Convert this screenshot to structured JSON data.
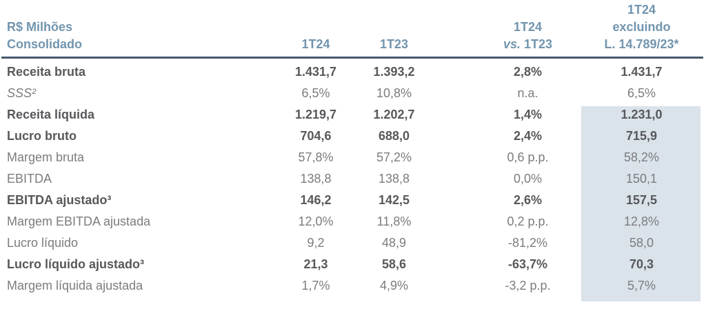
{
  "header": {
    "title_line1": "R$ Milhões",
    "title_line2": "Consolidado",
    "col_1t24": "1T24",
    "col_1t23": "1T23",
    "col_vs_line1": "1T24",
    "col_vs_line2_italic": "vs.",
    "col_vs_line2_text": "1T23",
    "col_excl_line1": "1T24",
    "col_excl_line2": "excluindo",
    "col_excl_line3": "L. 14.789/23*"
  },
  "rows": [
    {
      "label": "Receita bruta",
      "style": "bold",
      "v1t24": "1.431,7",
      "v1t23": "1.393,2",
      "vs": "2,8%",
      "excl": "1.431,7",
      "excl_highlight": false
    },
    {
      "label": "SSS²",
      "style": "italic",
      "v1t24": "6,5%",
      "v1t23": "10,8%",
      "vs": "n.a.",
      "excl": "6,5%",
      "excl_highlight": false
    },
    {
      "label": "Receita líquida",
      "style": "bold",
      "v1t24": "1.219,7",
      "v1t23": "1.202,7",
      "vs": "1,4%",
      "excl": "1.231,0",
      "excl_highlight": true
    },
    {
      "label": "Lucro bruto",
      "style": "bold",
      "v1t24": "704,6",
      "v1t23": "688,0",
      "vs": "2,4%",
      "excl": "715,9",
      "excl_highlight": true
    },
    {
      "label": "Margem bruta",
      "style": "regular",
      "v1t24": "57,8%",
      "v1t23": "57,2%",
      "vs": "0,6 p.p.",
      "excl": "58,2%",
      "excl_highlight": true
    },
    {
      "label": "EBITDA",
      "style": "regular",
      "v1t24": "138,8",
      "v1t23": "138,8",
      "vs": "0,0%",
      "excl": "150,1",
      "excl_highlight": true
    },
    {
      "label": "EBITDA ajustado³",
      "style": "bold",
      "v1t24": "146,2",
      "v1t23": "142,5",
      "vs": "2,6%",
      "excl": "157,5",
      "excl_highlight": true
    },
    {
      "label": "Margem EBITDA ajustada",
      "style": "regular",
      "v1t24": "12,0%",
      "v1t23": "11,8%",
      "vs": "0,2 p.p.",
      "excl": "12,8%",
      "excl_highlight": true
    },
    {
      "label": "Lucro líquido",
      "style": "regular",
      "v1t24": "9,2",
      "v1t23": "48,9",
      "vs": "-81,2%",
      "excl": "58,0",
      "excl_highlight": true
    },
    {
      "label": "Lucro líquido ajustado³",
      "style": "bold",
      "v1t24": "21,3",
      "v1t23": "58,6",
      "vs": "-63,7%",
      "excl": "70,3",
      "excl_highlight": true
    },
    {
      "label": "Margem líquida ajustada",
      "style": "regular",
      "v1t24": "1,7%",
      "v1t23": "4,9%",
      "vs": "-3,2 p.p.",
      "excl": "5,7%",
      "excl_highlight": true
    }
  ],
  "colors": {
    "header_blue": "#7295ae",
    "rule": "#46596b",
    "bold_text": "#57585b",
    "regular_text": "#7b7c7f",
    "highlight_bg": "#dae2ea"
  }
}
